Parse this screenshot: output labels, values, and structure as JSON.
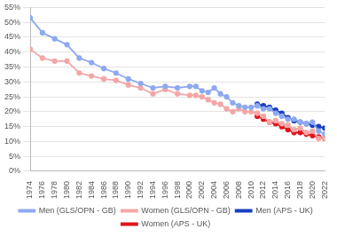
{
  "chart_data": {
    "type": "line",
    "x": [
      1974,
      1976,
      1978,
      1980,
      1982,
      1984,
      1986,
      1988,
      1990,
      1992,
      1994,
      1996,
      1998,
      2000,
      2001,
      2002,
      2003,
      2004,
      2005,
      2006,
      2007,
      2008,
      2009,
      2010,
      2011,
      2012,
      2013,
      2014,
      2015,
      2016,
      2017,
      2018,
      2019,
      2020,
      2021,
      2022
    ],
    "series": [
      {
        "name": "Men (GLS/OPN - GB)",
        "color": "#8fa9f0",
        "marker": "circle",
        "line_style": "solid",
        "values": [
          51.5,
          46.5,
          44.5,
          42.5,
          38,
          36.5,
          34.5,
          33,
          31,
          29.5,
          28,
          28.5,
          28,
          28.5,
          28.5,
          27,
          26.5,
          28,
          26,
          25,
          23,
          22,
          21.5,
          21.5,
          22,
          21,
          21,
          19.5,
          18.5,
          17.5,
          17.5,
          16.5,
          16,
          16.5,
          13.5,
          12.5
        ]
      },
      {
        "name": "Women (GLS/OPN - GB)",
        "color": "#f4a6a6",
        "marker": "circle",
        "line_style": "solid",
        "values": [
          41,
          38,
          37,
          37,
          33,
          32,
          31,
          30.5,
          29,
          28,
          26,
          27.5,
          26,
          25.5,
          25.5,
          25,
          24,
          23,
          22.5,
          21,
          20,
          21,
          20,
          20,
          19.5,
          18.5,
          16.5,
          17,
          16,
          15.5,
          14,
          14.5,
          13,
          13.5,
          11,
          11
        ]
      },
      {
        "name": "Men (APS - UK)",
        "color": "#1a3fbf",
        "marker": "circle",
        "line_style": "solid",
        "values": [
          null,
          null,
          null,
          null,
          null,
          null,
          null,
          null,
          null,
          null,
          null,
          null,
          null,
          null,
          null,
          null,
          null,
          null,
          null,
          null,
          null,
          null,
          null,
          null,
          22.5,
          22,
          21.5,
          20.5,
          19.5,
          18,
          17,
          16.5,
          16,
          15.5,
          15,
          14.5
        ]
      },
      {
        "name": "Women (APS - UK)",
        "color": "#e0141b",
        "marker": "circle",
        "line_style": "solid",
        "values": [
          null,
          null,
          null,
          null,
          null,
          null,
          null,
          null,
          null,
          null,
          null,
          null,
          null,
          null,
          null,
          null,
          null,
          null,
          null,
          null,
          null,
          null,
          null,
          null,
          18.5,
          17.5,
          16.5,
          16,
          15,
          14,
          13,
          13,
          12.5,
          12,
          11.5,
          11
        ]
      }
    ],
    "xlim": [
      1974,
      2022
    ],
    "xticks": [
      1974,
      1976,
      1978,
      1980,
      1982,
      1984,
      1986,
      1988,
      1990,
      1992,
      1994,
      1996,
      1998,
      2000,
      2002,
      2004,
      2006,
      2008,
      2010,
      2012,
      2014,
      2016,
      2018,
      2020,
      2022
    ],
    "ylim": [
      0,
      55
    ],
    "yticks": [
      {
        "value": 0,
        "label": "0%"
      },
      {
        "value": 5,
        "label": "5%"
      },
      {
        "value": 10,
        "label": "10%"
      },
      {
        "value": 15,
        "label": "15%"
      },
      {
        "value": 20,
        "label": "20%"
      },
      {
        "value": 25,
        "label": "25%"
      },
      {
        "value": 30,
        "label": "30%"
      },
      {
        "value": 35,
        "label": "35%"
      },
      {
        "value": 40,
        "label": "40%"
      },
      {
        "value": 45,
        "label": "45%"
      },
      {
        "value": 50,
        "label": "50%"
      },
      {
        "value": 55,
        "label": "55%"
      }
    ],
    "grid": true,
    "legend": "bottom"
  }
}
